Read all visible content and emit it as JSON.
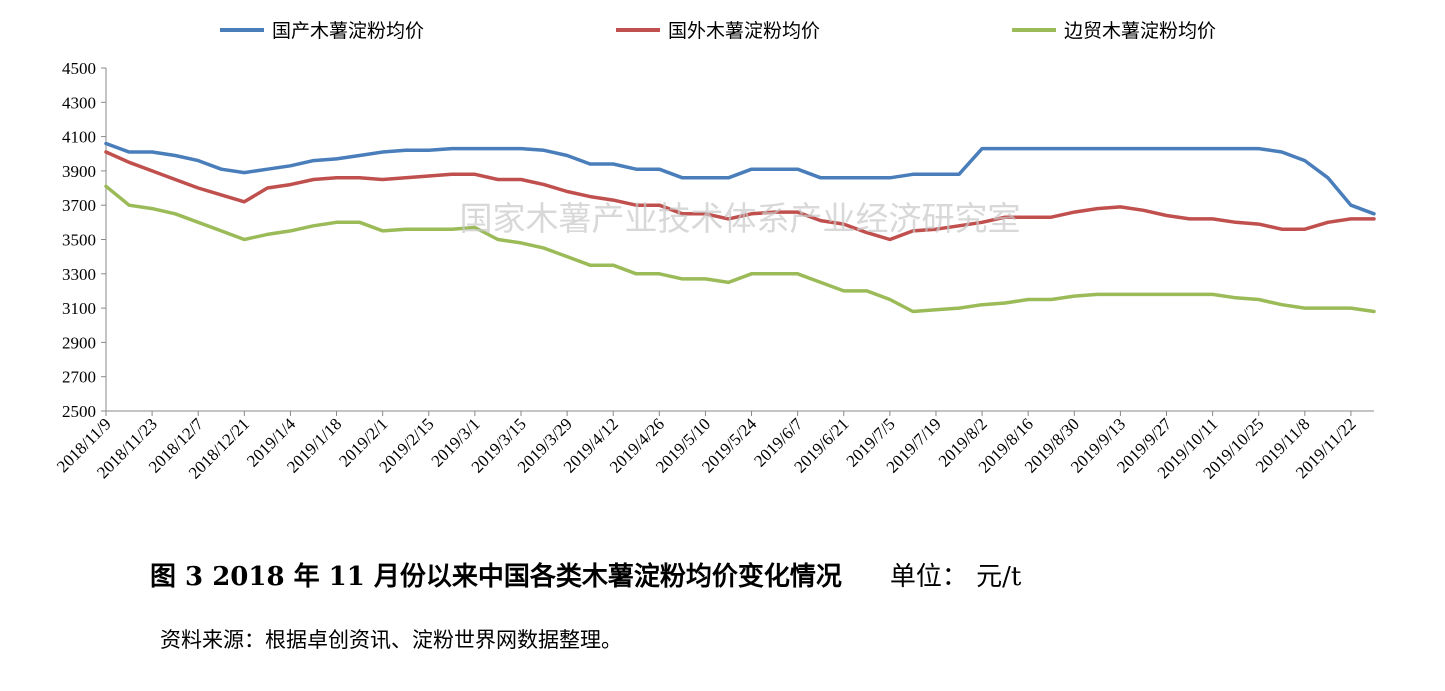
{
  "chart_data": {
    "type": "line",
    "title": "",
    "xlabel": "",
    "ylabel": "",
    "ylim": [
      2500,
      4500
    ],
    "yticks": [
      2500,
      2700,
      2900,
      3100,
      3300,
      3500,
      3700,
      3900,
      4100,
      4300,
      4500
    ],
    "legend_position": "top",
    "grid": false,
    "x": [
      "2018/11/9",
      "2018/11/16",
      "2018/11/23",
      "2018/11/30",
      "2018/12/7",
      "2018/12/14",
      "2018/12/21",
      "2018/12/28",
      "2019/1/4",
      "2019/1/11",
      "2019/1/18",
      "2019/1/25",
      "2019/2/1",
      "2019/2/8",
      "2019/2/15",
      "2019/2/22",
      "2019/3/1",
      "2019/3/8",
      "2019/3/15",
      "2019/3/22",
      "2019/3/29",
      "2019/4/5",
      "2019/4/12",
      "2019/4/19",
      "2019/4/26",
      "2019/5/3",
      "2019/5/10",
      "2019/5/17",
      "2019/5/24",
      "2019/5/31",
      "2019/6/7",
      "2019/6/14",
      "2019/6/21",
      "2019/6/28",
      "2019/7/5",
      "2019/7/12",
      "2019/7/19",
      "2019/7/26",
      "2019/8/2",
      "2019/8/9",
      "2019/8/16",
      "2019/8/23",
      "2019/8/30",
      "2019/9/6",
      "2019/9/13",
      "2019/9/20",
      "2019/9/27",
      "2019/10/4",
      "2019/10/11",
      "2019/10/18",
      "2019/10/25",
      "2019/11/1",
      "2019/11/8",
      "2019/11/15",
      "2019/11/22",
      "2019/11/29"
    ],
    "xtick_labels": [
      "2018/11/9",
      "2018/11/23",
      "2018/12/7",
      "2018/12/21",
      "2019/1/4",
      "2019/1/18",
      "2019/2/1",
      "2019/2/15",
      "2019/3/1",
      "2019/3/15",
      "2019/3/29",
      "2019/4/12",
      "2019/4/26",
      "2019/5/10",
      "2019/5/24",
      "2019/6/7",
      "2019/6/21",
      "2019/7/5",
      "2019/7/19",
      "2019/8/2",
      "2019/8/16",
      "2019/8/30",
      "2019/9/13",
      "2019/9/27",
      "2019/10/11",
      "2019/10/25",
      "2019/11/8",
      "2019/11/22"
    ],
    "series": [
      {
        "name": "国产木薯淀粉均价",
        "color": "#4a7ebb",
        "values": [
          4060,
          4010,
          4010,
          3990,
          3960,
          3910,
          3890,
          3910,
          3930,
          3960,
          3970,
          3990,
          4010,
          4020,
          4020,
          4030,
          4030,
          4030,
          4030,
          4020,
          3990,
          3940,
          3940,
          3910,
          3910,
          3860,
          3860,
          3860,
          3910,
          3910,
          3910,
          3860,
          3860,
          3860,
          3860,
          3880,
          3880,
          3880,
          4030,
          4030,
          4030,
          4030,
          4030,
          4030,
          4030,
          4030,
          4030,
          4030,
          4030,
          4030,
          4030,
          4010,
          3960,
          3860,
          3700,
          3650
        ]
      },
      {
        "name": "国外木薯淀粉均价",
        "color": "#c0504d",
        "values": [
          4010,
          3950,
          3900,
          3850,
          3800,
          3760,
          3720,
          3800,
          3820,
          3850,
          3860,
          3860,
          3850,
          3860,
          3870,
          3880,
          3880,
          3850,
          3850,
          3820,
          3780,
          3750,
          3730,
          3700,
          3700,
          3650,
          3650,
          3620,
          3650,
          3660,
          3660,
          3610,
          3590,
          3540,
          3500,
          3550,
          3560,
          3580,
          3600,
          3630,
          3630,
          3630,
          3660,
          3680,
          3690,
          3670,
          3640,
          3620,
          3620,
          3600,
          3590,
          3560,
          3560,
          3600,
          3620,
          3620
        ]
      },
      {
        "name": "边贸木薯淀粉均价",
        "color": "#9bbb59",
        "values": [
          3810,
          3700,
          3680,
          3650,
          3600,
          3550,
          3500,
          3530,
          3550,
          3580,
          3600,
          3600,
          3550,
          3560,
          3560,
          3560,
          3570,
          3500,
          3480,
          3450,
          3400,
          3350,
          3350,
          3300,
          3300,
          3270,
          3270,
          3250,
          3300,
          3300,
          3300,
          3250,
          3200,
          3200,
          3150,
          3080,
          3090,
          3100,
          3120,
          3130,
          3150,
          3150,
          3170,
          3180,
          3180,
          3180,
          3180,
          3180,
          3180,
          3160,
          3150,
          3120,
          3100,
          3100,
          3100,
          3080
        ]
      }
    ]
  },
  "watermark": "国家木薯产业技术体系产业经济研究室",
  "caption": {
    "main": "图 3   2018 年 11 月份以来中国各类木薯淀粉均价变化情况",
    "unit": "单位：  元/t"
  },
  "source_note": "资料来源：根据卓创资讯、淀粉世界网数据整理。"
}
